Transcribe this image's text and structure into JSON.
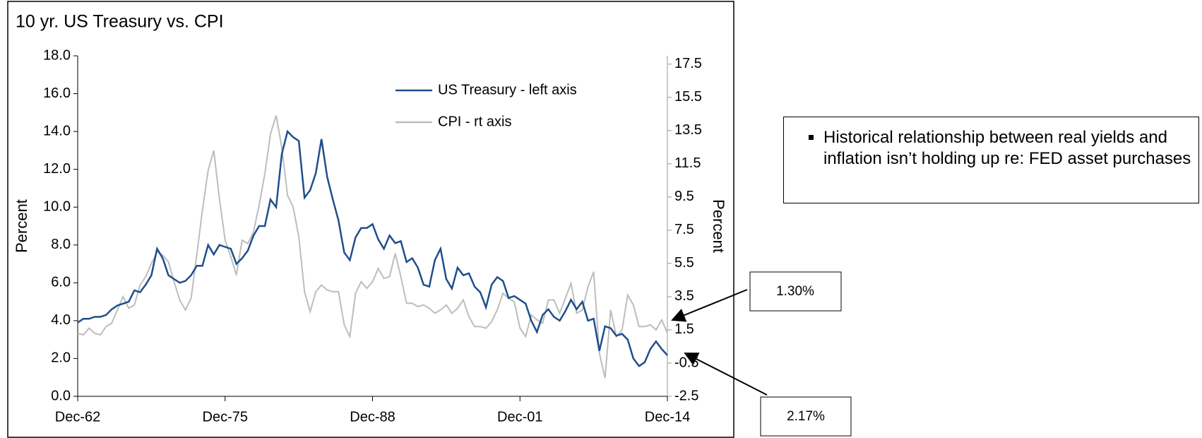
{
  "chart_data": {
    "type": "line",
    "title": "10 yr. US Treasury vs. CPI",
    "y_label": "Percent",
    "y2_label": "Percent",
    "categories": [
      "Dec-62",
      "Jun-63",
      "Dec-63",
      "Jun-64",
      "Dec-64",
      "Jun-65",
      "Dec-65",
      "Jun-66",
      "Dec-66",
      "Jun-67",
      "Dec-67",
      "Jun-68",
      "Dec-68",
      "Jun-69",
      "Dec-69",
      "Jun-70",
      "Dec-70",
      "Jun-71",
      "Dec-71",
      "Jun-72",
      "Dec-72",
      "Jun-73",
      "Dec-73",
      "Jun-74",
      "Dec-74",
      "Jun-75",
      "Dec-75",
      "Jun-76",
      "Dec-76",
      "Jun-77",
      "Dec-77",
      "Jun-78",
      "Dec-78",
      "Jun-79",
      "Dec-79",
      "Jun-80",
      "Dec-80",
      "Jun-81",
      "Dec-81",
      "Jun-82",
      "Dec-82",
      "Jun-83",
      "Dec-83",
      "Jun-84",
      "Dec-84",
      "Jun-85",
      "Dec-85",
      "Jun-86",
      "Dec-86",
      "Jun-87",
      "Dec-87",
      "Jun-88",
      "Dec-88",
      "Jun-89",
      "Dec-89",
      "Jun-90",
      "Dec-90",
      "Jun-91",
      "Dec-91",
      "Jun-92",
      "Dec-92",
      "Jun-93",
      "Dec-93",
      "Jun-94",
      "Dec-94",
      "Jun-95",
      "Dec-95",
      "Jun-96",
      "Dec-96",
      "Jun-97",
      "Dec-97",
      "Jun-98",
      "Dec-98",
      "Jun-99",
      "Dec-99",
      "Jun-00",
      "Dec-00",
      "Jun-01",
      "Dec-01",
      "Jun-02",
      "Dec-02",
      "Jun-03",
      "Dec-03",
      "Jun-04",
      "Dec-04",
      "Jun-05",
      "Dec-05",
      "Jun-06",
      "Dec-06",
      "Jun-07",
      "Dec-07",
      "Jun-08",
      "Dec-08",
      "Jun-09",
      "Dec-09",
      "Jun-10",
      "Dec-10",
      "Jun-11",
      "Dec-11",
      "Jun-12",
      "Dec-12",
      "Jun-13",
      "Dec-13",
      "Jun-14",
      "Dec-14"
    ],
    "xticks": [
      "Dec-62",
      "Dec-75",
      "Dec-88",
      "Dec-01",
      "Dec-14"
    ],
    "series": [
      {
        "name": "US Treasury - left axis",
        "color": "#1f4e8c",
        "axis": "y",
        "values": [
          3.9,
          4.1,
          4.1,
          4.2,
          4.2,
          4.3,
          4.6,
          4.8,
          4.9,
          5.0,
          5.6,
          5.5,
          5.9,
          6.4,
          7.8,
          7.3,
          6.4,
          6.2,
          6.0,
          6.1,
          6.4,
          6.9,
          6.9,
          8.0,
          7.5,
          8.0,
          7.9,
          7.8,
          7.0,
          7.3,
          7.7,
          8.5,
          9.0,
          9.0,
          10.4,
          10.0,
          12.8,
          14.0,
          13.7,
          13.5,
          10.5,
          10.9,
          11.8,
          13.6,
          11.6,
          10.4,
          9.3,
          7.6,
          7.2,
          8.4,
          8.9,
          8.9,
          9.1,
          8.3,
          7.8,
          8.5,
          8.1,
          8.2,
          7.1,
          7.3,
          6.8,
          5.9,
          5.8,
          7.2,
          7.8,
          6.2,
          5.7,
          6.8,
          6.4,
          6.5,
          5.8,
          5.5,
          4.7,
          5.9,
          6.3,
          6.1,
          5.2,
          5.3,
          5.1,
          4.9,
          4.0,
          3.4,
          4.3,
          4.6,
          4.2,
          4.0,
          4.5,
          5.1,
          4.6,
          5.0,
          4.0,
          4.1,
          2.4,
          3.7,
          3.6,
          3.2,
          3.3,
          3.0,
          2.0,
          1.6,
          1.8,
          2.5,
          2.9,
          2.5,
          2.17
        ]
      },
      {
        "name": "CPI - rt axis",
        "color": "#bdbdbd",
        "axis": "y2",
        "values": [
          1.3,
          1.2,
          1.6,
          1.3,
          1.2,
          1.7,
          1.9,
          2.7,
          3.5,
          2.8,
          3.0,
          4.2,
          4.7,
          5.5,
          6.2,
          6.0,
          5.6,
          4.4,
          3.3,
          2.7,
          3.4,
          6.0,
          8.7,
          11.1,
          12.3,
          9.4,
          6.9,
          5.9,
          4.8,
          6.9,
          6.7,
          7.4,
          9.0,
          10.9,
          13.3,
          14.4,
          12.5,
          9.6,
          8.9,
          7.1,
          3.8,
          2.6,
          3.8,
          4.2,
          3.9,
          3.8,
          3.8,
          1.8,
          1.1,
          3.7,
          4.4,
          4.0,
          4.4,
          5.2,
          4.6,
          4.7,
          6.1,
          4.7,
          3.1,
          3.1,
          2.9,
          3.0,
          2.8,
          2.5,
          2.7,
          3.0,
          2.5,
          2.8,
          3.3,
          2.3,
          1.7,
          1.7,
          1.6,
          2.0,
          2.7,
          3.7,
          3.4,
          3.2,
          1.6,
          1.1,
          2.4,
          2.1,
          1.9,
          3.3,
          3.3,
          2.5,
          3.4,
          4.3,
          2.5,
          2.7,
          4.1,
          5.0,
          0.1,
          -1.4,
          2.7,
          1.1,
          1.5,
          3.6,
          3.0,
          1.7,
          1.7,
          1.8,
          1.5,
          2.1,
          1.3
        ]
      }
    ],
    "ylim": [
      0,
      18
    ],
    "yticks": [
      {
        "value": 0,
        "label": "0.0"
      },
      {
        "value": 2,
        "label": "2.0"
      },
      {
        "value": 4,
        "label": "4.0"
      },
      {
        "value": 6,
        "label": "6.0"
      },
      {
        "value": 8,
        "label": "8.0"
      },
      {
        "value": 10,
        "label": "10.0"
      },
      {
        "value": 12,
        "label": "12.0"
      },
      {
        "value": 14,
        "label": "14.0"
      },
      {
        "value": 16,
        "label": "16.0"
      },
      {
        "value": 18,
        "label": "18.0"
      }
    ],
    "y2lim": [
      -2.5,
      18
    ],
    "y2ticks": [
      -2.5,
      -0.5,
      1.5,
      3.5,
      5.5,
      7.5,
      9.5,
      11.5,
      13.5,
      15.5,
      17.5
    ],
    "annotations": [
      "1.30%",
      "2.17%"
    ],
    "note": "Historical relationship between real yields and inflation isn’t holding up re: FED asset purchases"
  }
}
